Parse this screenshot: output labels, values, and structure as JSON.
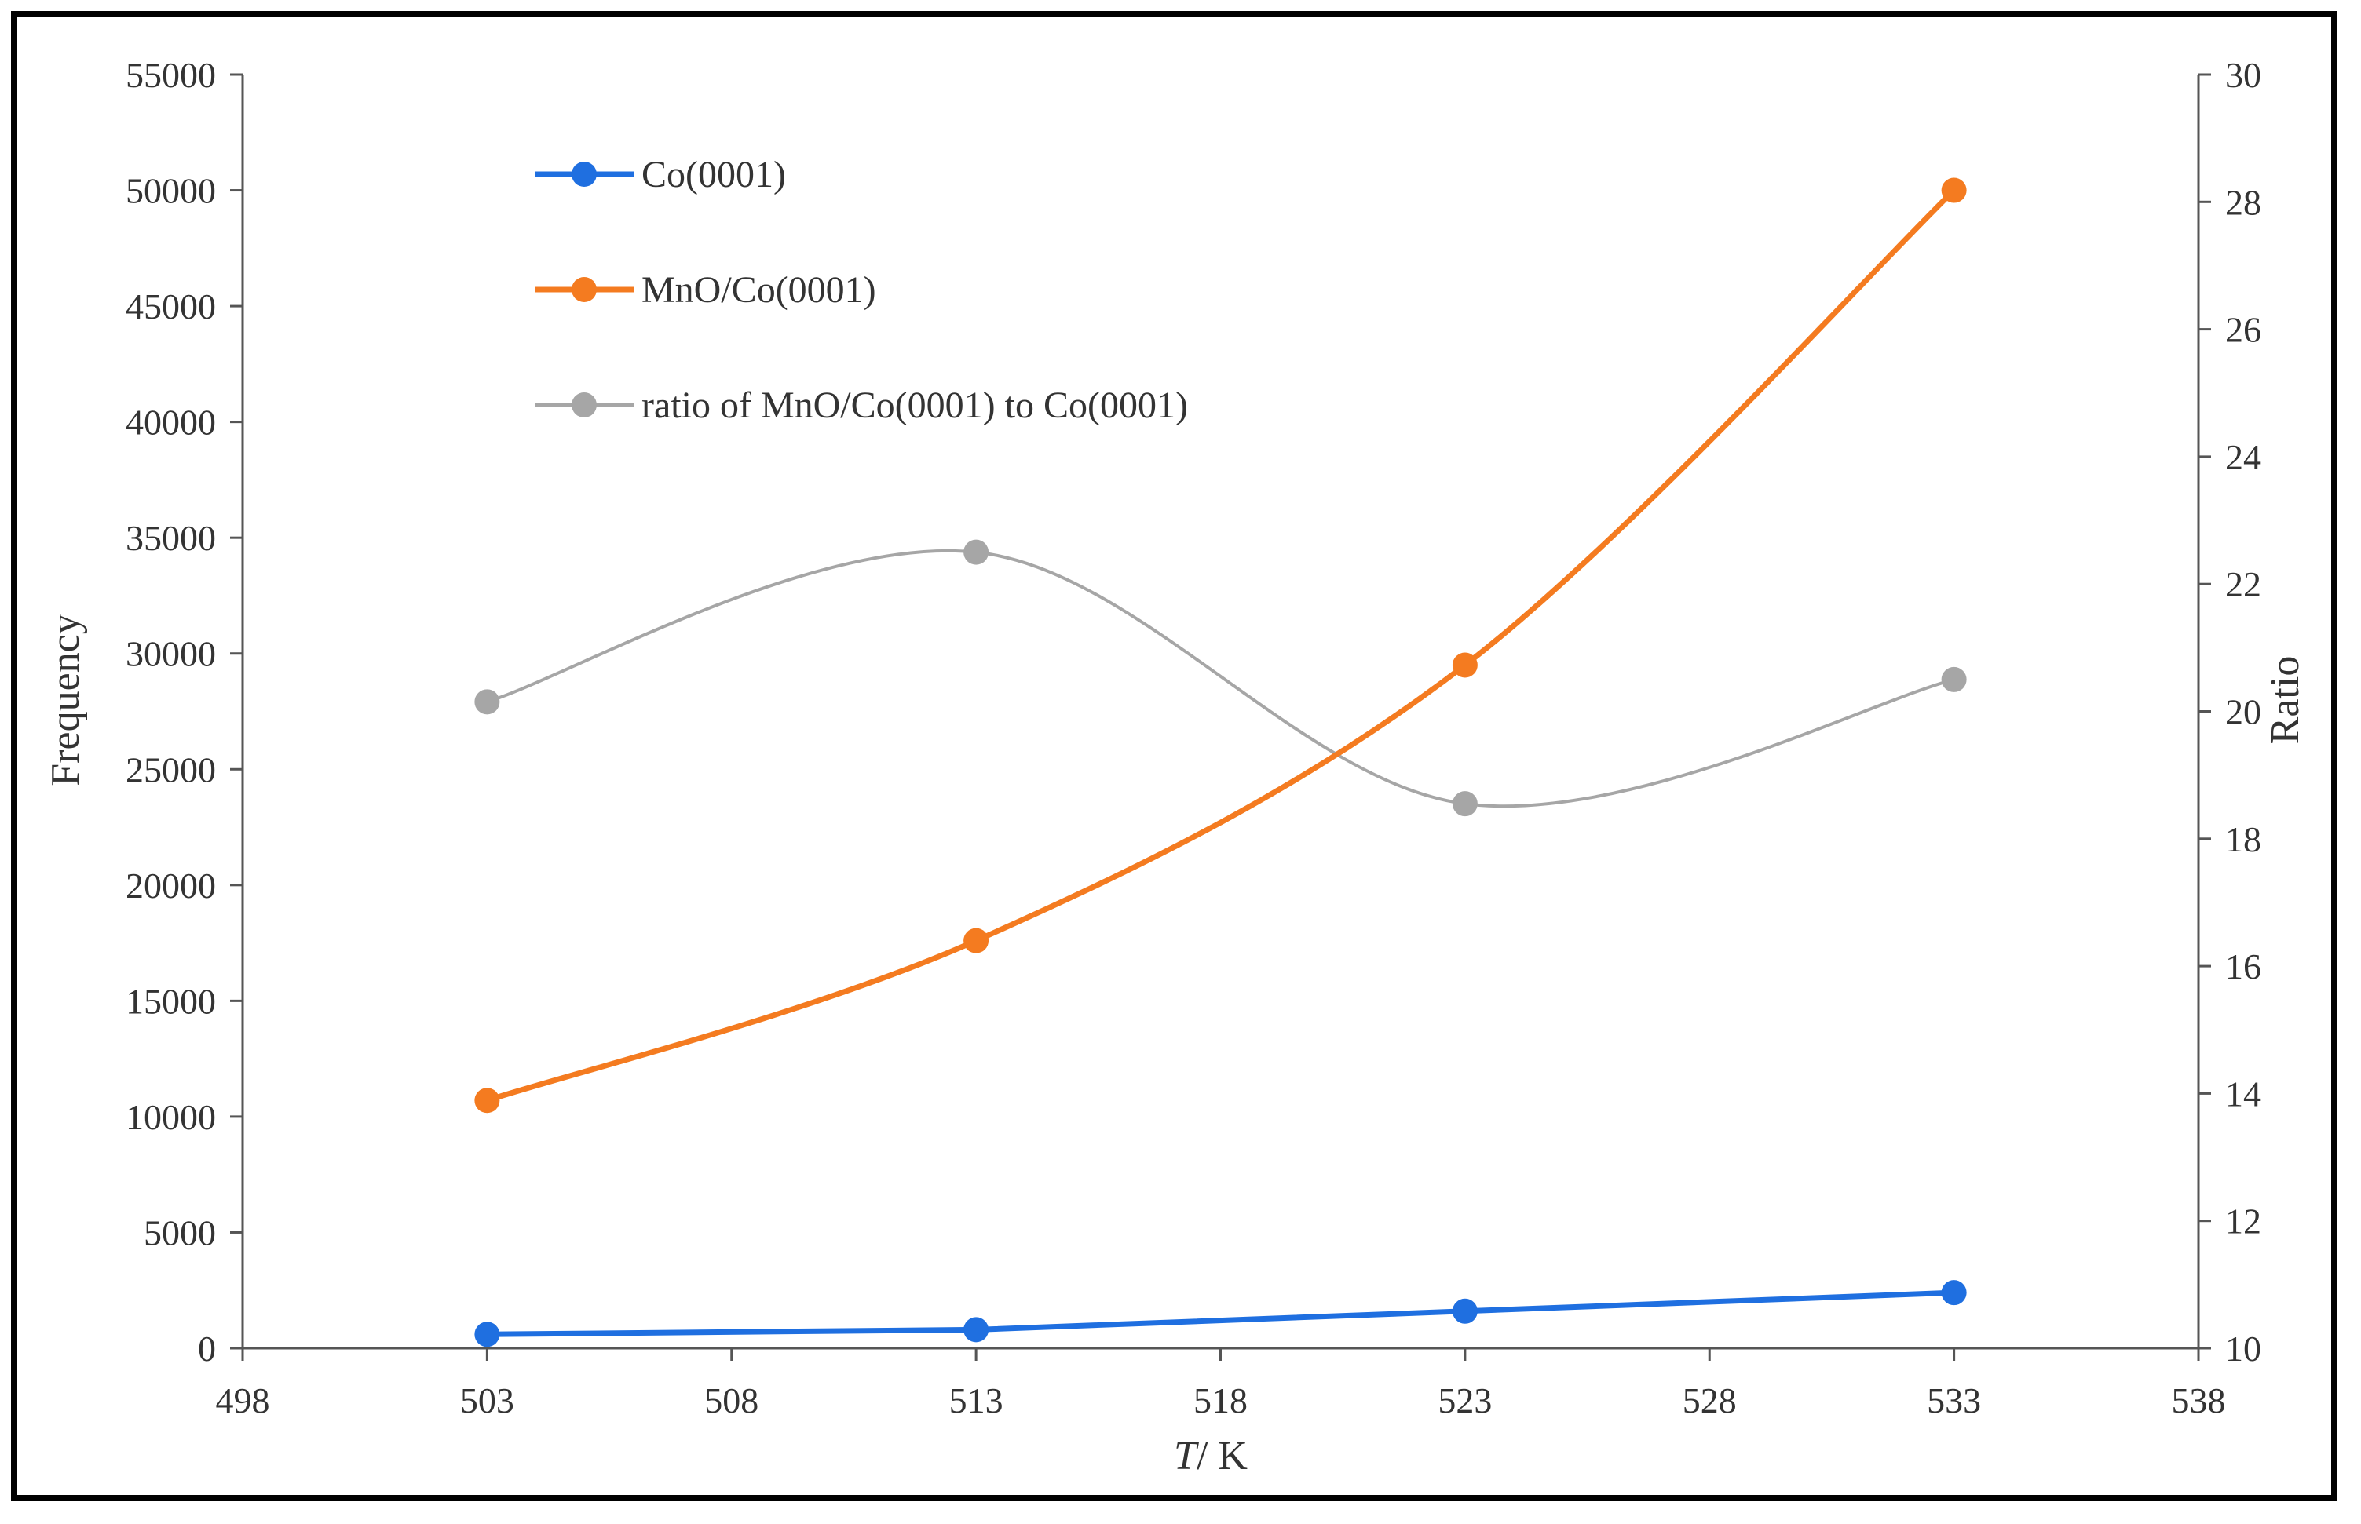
{
  "chart_data": {
    "type": "line",
    "xlabel_italic": "T",
    "xlabel_rest": "/ K",
    "ylabel": "Frequency",
    "y2label": "Ratio",
    "x": [
      503,
      513,
      523,
      533
    ],
    "xlim": [
      498,
      538
    ],
    "xticks": [
      498,
      503,
      508,
      513,
      518,
      523,
      528,
      533,
      538
    ],
    "ylim": [
      0,
      55000
    ],
    "yticks": [
      0,
      5000,
      10000,
      15000,
      20000,
      25000,
      30000,
      35000,
      40000,
      45000,
      50000,
      55000
    ],
    "y2lim": [
      10,
      30
    ],
    "y2ticks": [
      10,
      12,
      14,
      16,
      18,
      20,
      22,
      24,
      26,
      28,
      30
    ],
    "grid": false,
    "legend_position": "top-left",
    "series": [
      {
        "name": "Co(0001)",
        "axis": "left",
        "color": "#1f6fe0",
        "smooth": false,
        "values": [
          600,
          800,
          1600,
          2400
        ]
      },
      {
        "name": "MnO/Co(0001)",
        "axis": "left",
        "color": "#f47b20",
        "smooth": true,
        "values": [
          10700,
          17600,
          29500,
          50000
        ]
      },
      {
        "name": "ratio of MnO/Co(0001) to Co(0001)",
        "axis": "right",
        "color": "#a6a6a6",
        "smooth": true,
        "values": [
          20.15,
          22.5,
          18.55,
          20.5
        ]
      }
    ]
  }
}
